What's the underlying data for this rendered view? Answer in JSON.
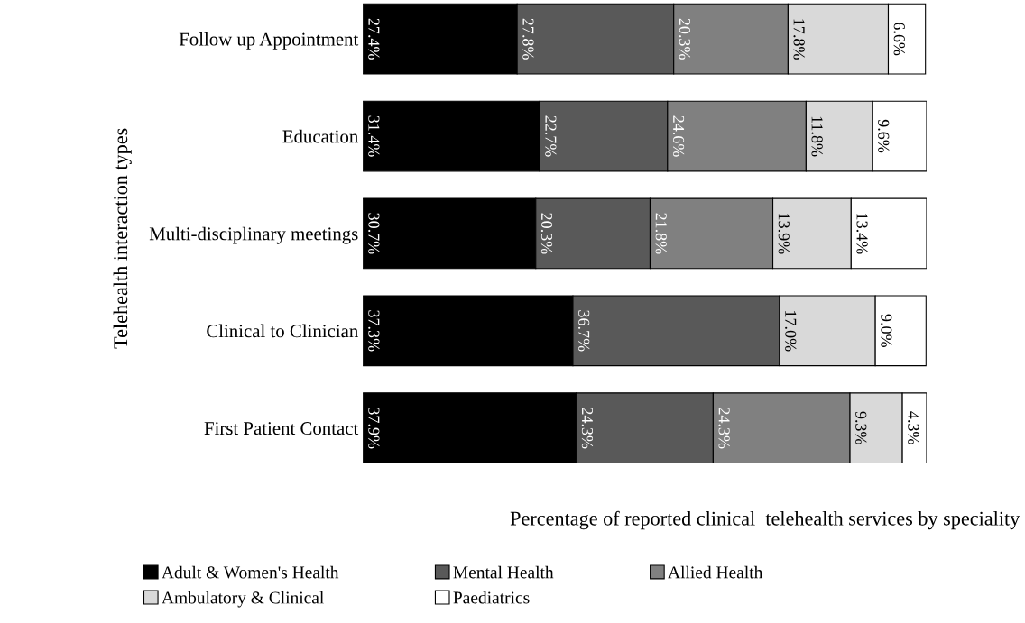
{
  "chart_data": {
    "type": "bar",
    "orientation": "horizontal",
    "stacked": true,
    "ylabel": "Telehealth interaction types",
    "xlabel": "Percentage of reported clinical  telehealth services by speciality",
    "categories": [
      "Follow up Appointment",
      "Education",
      "Multi-disciplinary meetings",
      "Clinical to Clinician",
      "First Patient Contact"
    ],
    "series": [
      {
        "name": "Adult & Women's Health",
        "color": "#000000",
        "values": [
          27.4,
          31.4,
          30.7,
          37.3,
          37.9
        ],
        "value_labels": [
          "27.4%",
          "31.4%",
          "30.7%",
          "37.3%",
          "37.9%"
        ]
      },
      {
        "name": "Mental Health",
        "color": "#595959",
        "values": [
          27.8,
          22.7,
          20.3,
          36.7,
          24.3
        ],
        "value_labels": [
          "27.8%",
          "22.7%",
          "20.3%",
          "36.7%",
          "24.3%"
        ]
      },
      {
        "name": "Allied Health",
        "color": "#808080",
        "values": [
          20.3,
          24.6,
          21.8,
          null,
          24.3
        ],
        "value_labels": [
          "20.3%",
          "24.6%",
          "21.8%",
          null,
          "24.3%"
        ]
      },
      {
        "name": "Ambulatory & Clinical",
        "color": "#d9d9d9",
        "values": [
          17.8,
          11.8,
          13.9,
          17.0,
          9.3
        ],
        "value_labels": [
          "17.8%",
          "11.8%",
          "13.9%",
          "17.0%",
          "9.3%"
        ]
      },
      {
        "name": "Paediatrics",
        "color": "#ffffff",
        "values": [
          6.6,
          9.6,
          13.4,
          9.0,
          4.3
        ],
        "value_labels": [
          "6.6%",
          "9.6%",
          "13.4%",
          "9.0%",
          "4.3%"
        ]
      }
    ],
    "legend": "bottom",
    "grid": false,
    "tick_labels": "y"
  }
}
